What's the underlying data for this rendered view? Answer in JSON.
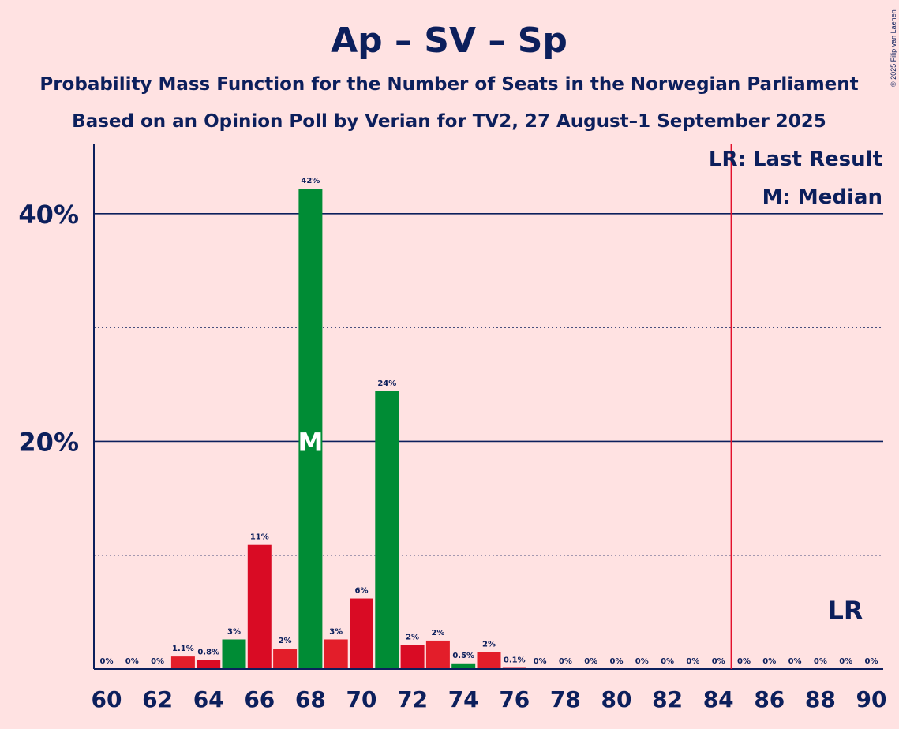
{
  "chart_data": {
    "type": "bar",
    "title": "Ap – SV – Sp",
    "subtitle_1": "Probability Mass Function for the Number of Seats in the Norwegian Parliament",
    "subtitle_2": "Based on an Opinion Poll by Verian for TV2, 27 August–1 September 2025",
    "copyright": "© 2025 Filip van Laenen",
    "xlabel": "",
    "ylabel": "",
    "x_range": [
      60,
      90
    ],
    "ylim": [
      0,
      46
    ],
    "y_ticks": [
      {
        "value": 20,
        "label": "20%"
      },
      {
        "value": 40,
        "label": "40%"
      }
    ],
    "y_dotted_gridlines": [
      10,
      30
    ],
    "x_ticks": [
      60,
      62,
      64,
      66,
      68,
      70,
      72,
      74,
      76,
      78,
      80,
      82,
      84,
      86,
      88,
      90
    ],
    "x_tick_labels": [
      "60",
      "62",
      "64",
      "66",
      "68",
      "70",
      "72",
      "74",
      "76",
      "78",
      "80",
      "82",
      "84",
      "86",
      "88",
      "90"
    ],
    "bars": [
      {
        "seats": 60,
        "value": 0,
        "label": "0%"
      },
      {
        "seats": 61,
        "value": 0,
        "label": "0%"
      },
      {
        "seats": 62,
        "value": 0,
        "label": "0%"
      },
      {
        "seats": 63,
        "value": 1.1,
        "label": "1.1%"
      },
      {
        "seats": 64,
        "value": 0.8,
        "label": "0.8%"
      },
      {
        "seats": 65,
        "value": 2.6,
        "label": "3%"
      },
      {
        "seats": 66,
        "value": 10.9,
        "label": "11%"
      },
      {
        "seats": 67,
        "value": 1.8,
        "label": "2%"
      },
      {
        "seats": 68,
        "value": 42.2,
        "label": "42%"
      },
      {
        "seats": 69,
        "value": 2.6,
        "label": "3%"
      },
      {
        "seats": 70,
        "value": 6.2,
        "label": "6%"
      },
      {
        "seats": 71,
        "value": 24.4,
        "label": "24%"
      },
      {
        "seats": 72,
        "value": 2.1,
        "label": "2%"
      },
      {
        "seats": 73,
        "value": 2.5,
        "label": "2%"
      },
      {
        "seats": 74,
        "value": 0.5,
        "label": "0.5%"
      },
      {
        "seats": 75,
        "value": 1.5,
        "label": "2%"
      },
      {
        "seats": 76,
        "value": 0.1,
        "label": "0.1%"
      },
      {
        "seats": 77,
        "value": 0,
        "label": "0%"
      },
      {
        "seats": 78,
        "value": 0,
        "label": "0%"
      },
      {
        "seats": 79,
        "value": 0,
        "label": "0%"
      },
      {
        "seats": 80,
        "value": 0,
        "label": "0%"
      },
      {
        "seats": 81,
        "value": 0,
        "label": "0%"
      },
      {
        "seats": 82,
        "value": 0,
        "label": "0%"
      },
      {
        "seats": 83,
        "value": 0,
        "label": "0%"
      },
      {
        "seats": 84,
        "value": 0,
        "label": "0%"
      },
      {
        "seats": 85,
        "value": 0,
        "label": "0%"
      },
      {
        "seats": 86,
        "value": 0,
        "label": "0%"
      },
      {
        "seats": 87,
        "value": 0,
        "label": "0%"
      },
      {
        "seats": 88,
        "value": 0,
        "label": "0%"
      },
      {
        "seats": 89,
        "value": 0,
        "label": "0%"
      },
      {
        "seats": 90,
        "value": 0,
        "label": "0%"
      }
    ],
    "median": 68,
    "median_mark": "M",
    "last_result": 85,
    "last_result_mark": "LR",
    "legend": {
      "placement": "top-right",
      "entries": [
        "LR: Last Result",
        "M: Median"
      ]
    },
    "colors": {
      "background": "#FFE2E2",
      "text": "#0C1F5C",
      "highlight_bar": "#008C35",
      "bar_a": "#E31E2A",
      "bar_b": "#D90B24",
      "last_result_line": "#E3102C"
    },
    "highlight_seats": [
      65,
      68,
      71,
      74
    ]
  }
}
